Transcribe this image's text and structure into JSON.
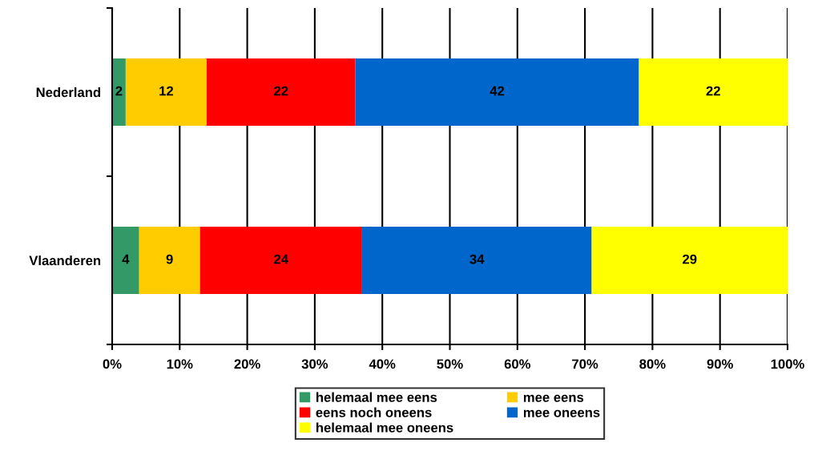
{
  "chart_data": {
    "type": "bar",
    "orientation": "horizontal",
    "stacked": true,
    "categories": [
      "Nederland",
      "Vlaanderen"
    ],
    "series": [
      {
        "name": "helemaal mee eens",
        "color": "#339966",
        "values": [
          2,
          4
        ]
      },
      {
        "name": "mee eens",
        "color": "#ffcc00",
        "values": [
          12,
          9
        ]
      },
      {
        "name": "eens noch oneens",
        "color": "#ff0000",
        "values": [
          22,
          24
        ]
      },
      {
        "name": "mee oneens",
        "color": "#0066cc",
        "values": [
          42,
          34
        ]
      },
      {
        "name": "helemaal mee oneens",
        "color": "#ffff00",
        "values": [
          22,
          29
        ]
      }
    ],
    "xlim": [
      0,
      100
    ],
    "xticks": [
      {
        "value": 0,
        "label": "0%"
      },
      {
        "value": 10,
        "label": "10%"
      },
      {
        "value": 20,
        "label": "20%"
      },
      {
        "value": 30,
        "label": "30%"
      },
      {
        "value": 40,
        "label": "40%"
      },
      {
        "value": 50,
        "label": "50%"
      },
      {
        "value": 60,
        "label": "60%"
      },
      {
        "value": 70,
        "label": "70%"
      },
      {
        "value": 80,
        "label": "80%"
      },
      {
        "value": 90,
        "label": "90%"
      },
      {
        "value": 100,
        "label": "100%"
      }
    ],
    "grid": "x",
    "legend": "bottom",
    "data_labels": true
  }
}
